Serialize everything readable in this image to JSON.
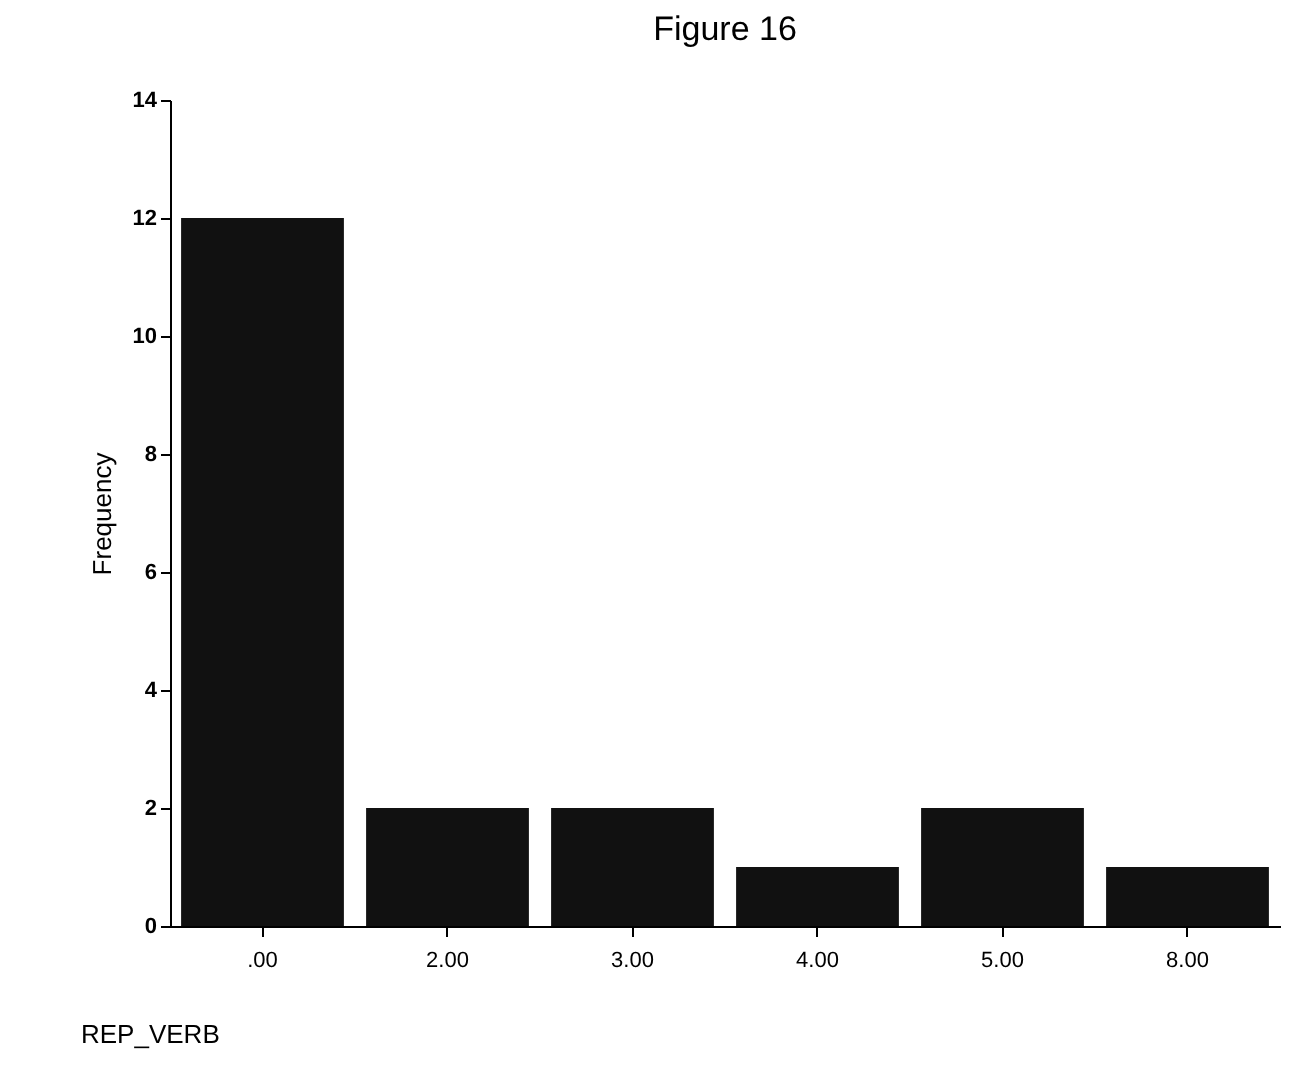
{
  "chart_data": {
    "type": "bar",
    "title": "Figure 16",
    "xlabel": "REP_VERB",
    "ylabel": "Frequency",
    "categories": [
      ".00",
      "2.00",
      "3.00",
      "4.00",
      "5.00",
      "8.00"
    ],
    "values": [
      12,
      2,
      2,
      1,
      2,
      1
    ],
    "color": "#111111",
    "ylim": [
      0,
      14
    ],
    "yticks": [
      0,
      2,
      4,
      6,
      8,
      10,
      12,
      14
    ],
    "grid": false
  }
}
